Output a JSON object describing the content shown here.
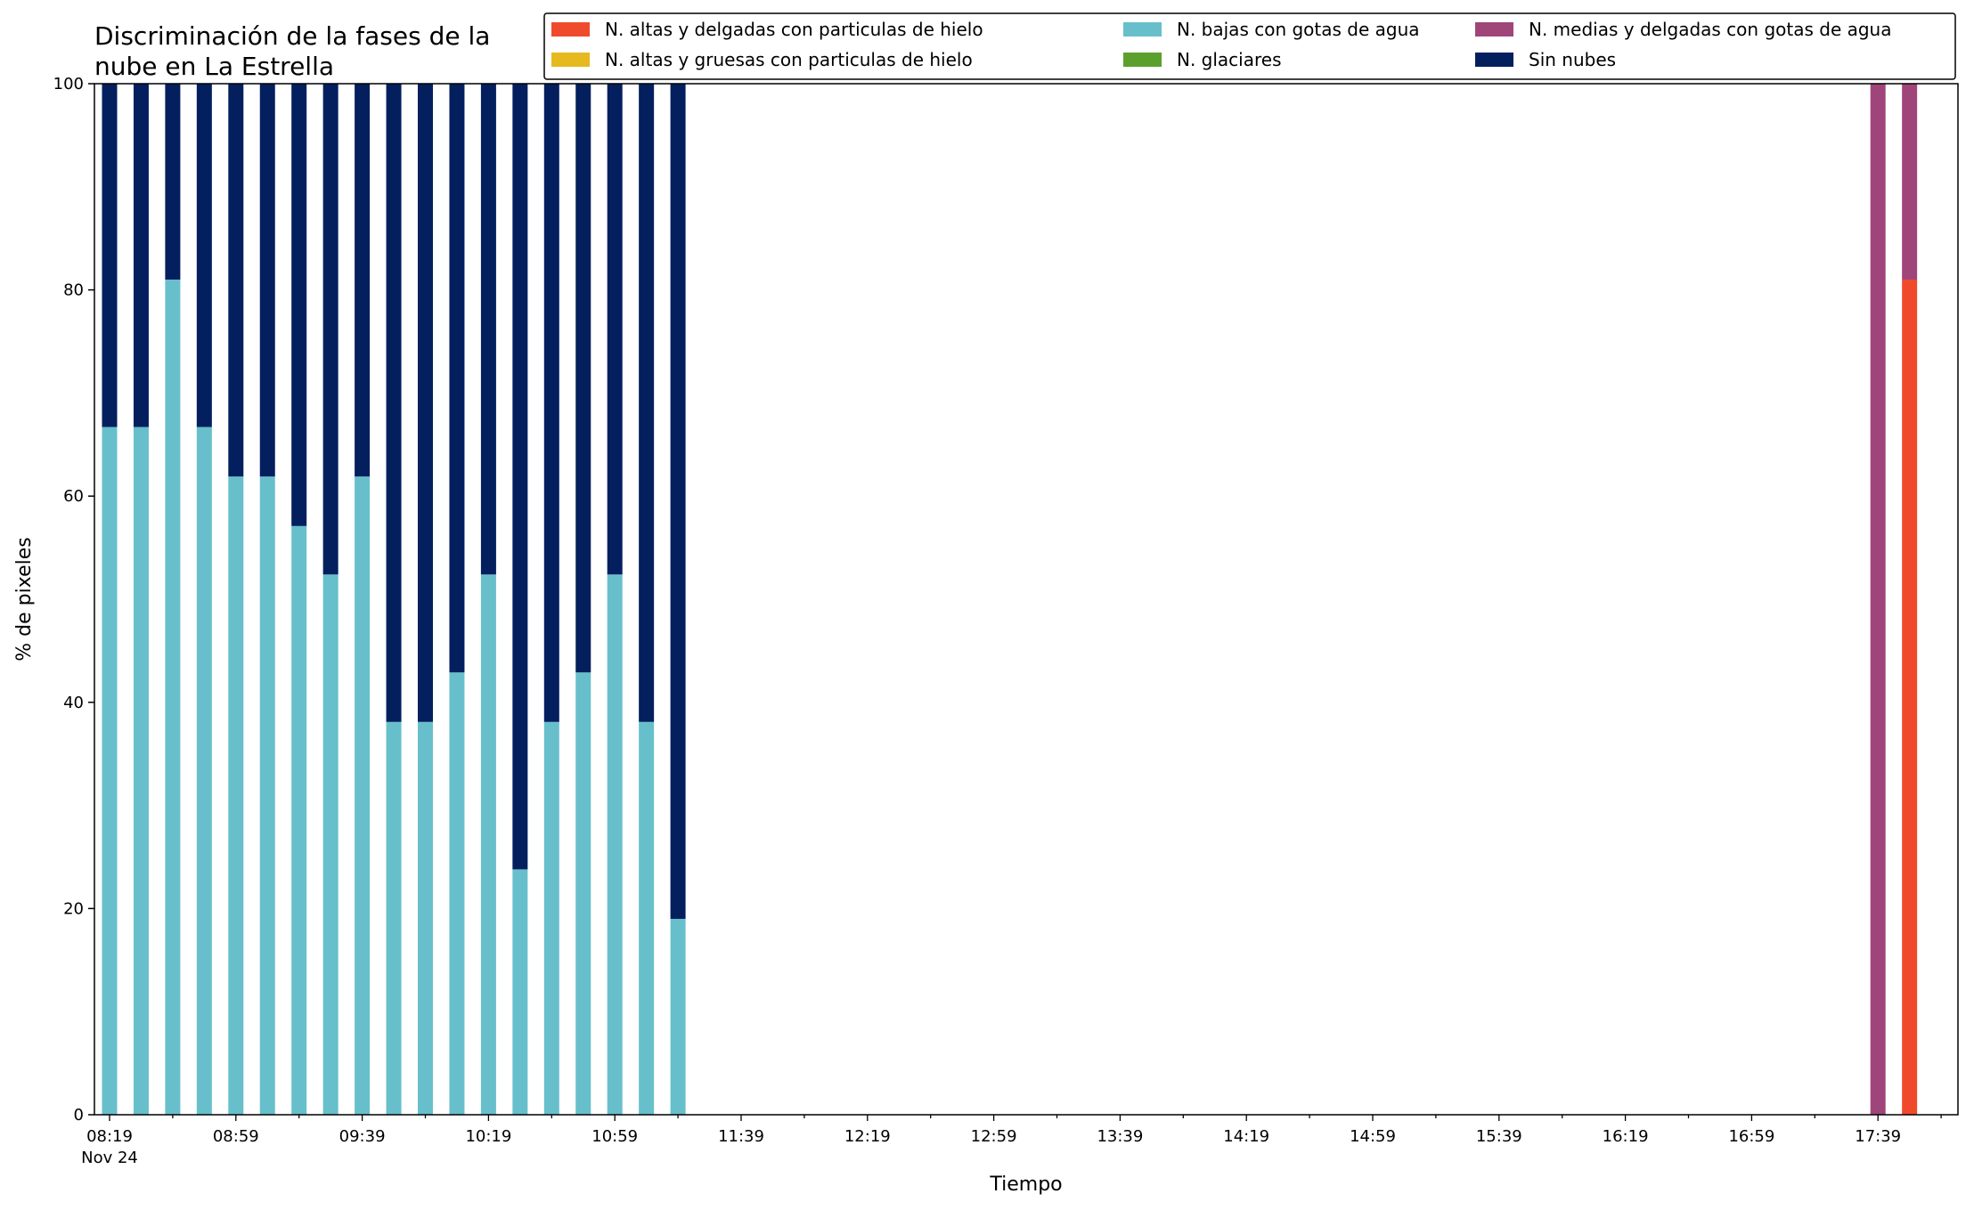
{
  "chart_data": {
    "type": "bar",
    "stacked": true,
    "title": "Discriminación de la fases de la\nnube en La Estrella",
    "xlabel": "Tiempo",
    "ylabel": "% de pixeles",
    "ylim": [
      0,
      100
    ],
    "yticks": [
      0,
      20,
      40,
      60,
      80,
      100
    ],
    "x_axis": {
      "start_time": "08:19",
      "slot_minutes": 10,
      "slot_count": 60,
      "major_ticks": [
        "08:19",
        "08:59",
        "09:39",
        "10:19",
        "10:59",
        "11:39",
        "12:19",
        "12:59",
        "13:39",
        "14:19",
        "14:59",
        "15:39",
        "16:19",
        "16:59",
        "17:39"
      ],
      "first_tick_sublabel": "Nov 24"
    },
    "grid": false,
    "legend_position": "top-right",
    "legend": [
      "N. altas y delgadas con particulas de hielo",
      "N. altas y gruesas con particulas de hielo",
      "N. bajas con gotas de agua",
      "N. glaciares",
      "N. medias y delgadas con gotas de agua",
      "Sin nubes"
    ],
    "series": [
      {
        "name": "N. altas y delgadas con particulas de hielo",
        "color": "#f04a2c",
        "points": [
          {
            "time": "17:49",
            "value": 81
          }
        ]
      },
      {
        "name": "N. altas y gruesas con particulas de hielo",
        "color": "#e6b91e",
        "points": []
      },
      {
        "name": "N. bajas con gotas de agua",
        "color": "#67bfcb",
        "points": [
          {
            "time": "08:19",
            "value": 66.7
          },
          {
            "time": "08:29",
            "value": 66.7
          },
          {
            "time": "08:39",
            "value": 81
          },
          {
            "time": "08:49",
            "value": 66.7
          },
          {
            "time": "08:59",
            "value": 61.9
          },
          {
            "time": "09:09",
            "value": 61.9
          },
          {
            "time": "09:19",
            "value": 57.1
          },
          {
            "time": "09:29",
            "value": 52.4
          },
          {
            "time": "09:39",
            "value": 61.9
          },
          {
            "time": "09:49",
            "value": 38.1
          },
          {
            "time": "09:59",
            "value": 38.1
          },
          {
            "time": "10:09",
            "value": 42.9
          },
          {
            "time": "10:19",
            "value": 52.4
          },
          {
            "time": "10:29",
            "value": 23.8
          },
          {
            "time": "10:39",
            "value": 38.1
          },
          {
            "time": "10:49",
            "value": 42.9
          },
          {
            "time": "10:59",
            "value": 52.4
          },
          {
            "time": "11:09",
            "value": 38.1
          },
          {
            "time": "11:19",
            "value": 19
          }
        ]
      },
      {
        "name": "N. glaciares",
        "color": "#5ba02d",
        "points": []
      },
      {
        "name": "N. medias y delgadas con gotas de agua",
        "color": "#a0457a",
        "points": [
          {
            "time": "17:39",
            "value": 100
          },
          {
            "time": "17:49",
            "value": 19
          }
        ]
      },
      {
        "name": "Sin nubes",
        "color": "#031f5e",
        "points": [
          {
            "time": "08:19",
            "value": 33.3
          },
          {
            "time": "08:29",
            "value": 33.3
          },
          {
            "time": "08:39",
            "value": 19
          },
          {
            "time": "08:49",
            "value": 33.3
          },
          {
            "time": "08:59",
            "value": 38.1
          },
          {
            "time": "09:09",
            "value": 38.1
          },
          {
            "time": "09:19",
            "value": 42.9
          },
          {
            "time": "09:29",
            "value": 47.6
          },
          {
            "time": "09:39",
            "value": 38.1
          },
          {
            "time": "09:49",
            "value": 61.9
          },
          {
            "time": "09:59",
            "value": 61.9
          },
          {
            "time": "10:09",
            "value": 57.1
          },
          {
            "time": "10:19",
            "value": 47.6
          },
          {
            "time": "10:29",
            "value": 76.2
          },
          {
            "time": "10:39",
            "value": 61.9
          },
          {
            "time": "10:49",
            "value": 57.1
          },
          {
            "time": "10:59",
            "value": 47.6
          },
          {
            "time": "11:09",
            "value": 61.9
          },
          {
            "time": "11:19",
            "value": 81
          }
        ]
      }
    ]
  }
}
